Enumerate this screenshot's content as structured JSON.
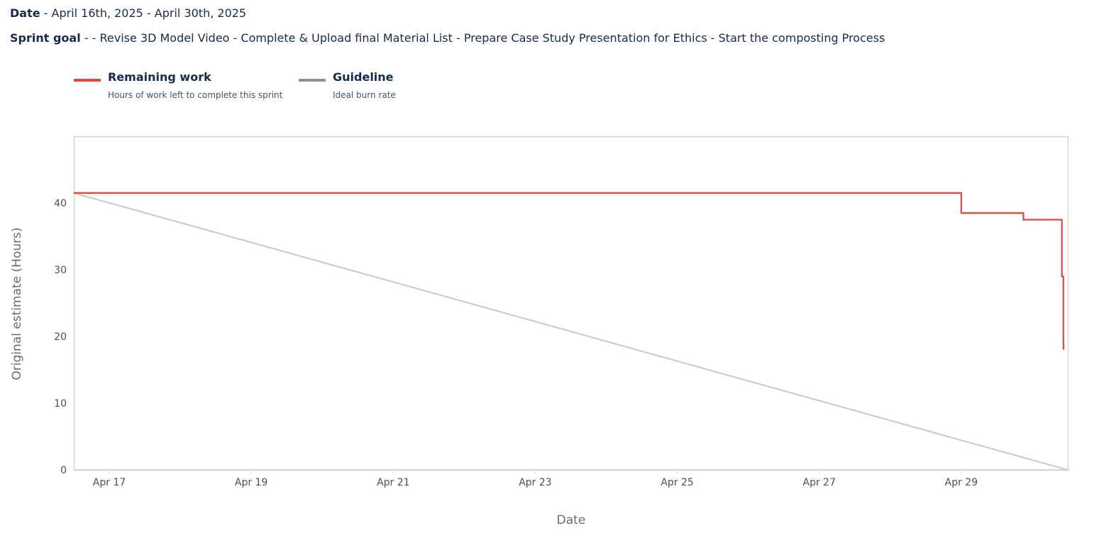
{
  "header": {
    "date_label": "Date",
    "date_value": " - April 16th, 2025 - April 30th, 2025",
    "goal_label": "Sprint goal",
    "goal_value": " - - Revise 3D Model Video - Complete & Upload final Material List - Prepare Case Study Presentation for Ethics - Start the composting Process"
  },
  "legend": {
    "remaining": {
      "title": "Remaining work",
      "desc": "Hours of work left to complete this sprint",
      "color": "#e2483d"
    },
    "guideline": {
      "title": "Guideline",
      "desc": "Ideal burn rate",
      "color": "#8f8f98"
    }
  },
  "chart_data": {
    "type": "line",
    "xlabel": "Date",
    "ylabel": "Original estimate (Hours)",
    "x_ticks": [
      "Apr 17",
      "Apr 19",
      "Apr 21",
      "Apr 23",
      "Apr 25",
      "Apr 27",
      "Apr 29"
    ],
    "y_ticks": [
      0,
      10,
      20,
      30,
      40
    ],
    "ylim": [
      0,
      50
    ],
    "xlim": [
      "2025-04-16 12:00",
      "2025-04-30 12:00"
    ],
    "grid": false,
    "legend_position": "top-left",
    "series": [
      {
        "name": "Remaining work",
        "color": "#e2483d",
        "step": true,
        "points": [
          {
            "x": "2025-04-16 12:00",
            "y": 41.5
          },
          {
            "x": "2025-04-29 00:00",
            "y": 38.5
          },
          {
            "x": "2025-04-29 21:00",
            "y": 37.5
          },
          {
            "x": "2025-04-30 10:00",
            "y": 29
          },
          {
            "x": "2025-04-30 10:30",
            "y": 19
          },
          {
            "x": "2025-04-30 10:35",
            "y": 18
          }
        ]
      },
      {
        "name": "Guideline",
        "color": "#cfcccc",
        "step": false,
        "points": [
          {
            "x": "2025-04-16 12:00",
            "y": 41.5
          },
          {
            "x": "2025-04-30 12:00",
            "y": 0
          }
        ]
      }
    ]
  }
}
